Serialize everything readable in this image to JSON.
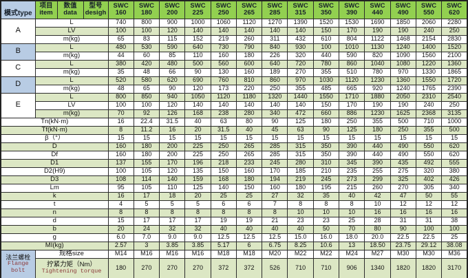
{
  "colors": {
    "header_green": "#92d050",
    "stripe_green": "#dce7c4",
    "cell_blue": "#b8cce4",
    "grid_border": "#2b2b2b",
    "flange_text_red": "#8b3a3a"
  },
  "columns": {
    "brand": "SWC",
    "sizes": [
      "160",
      "180",
      "200",
      "225",
      "250",
      "265",
      "285",
      "315",
      "350",
      "390",
      "440",
      "490",
      "550",
      "620"
    ]
  },
  "header": {
    "mode": "模式type",
    "item_cn": "项目",
    "item_en": "item",
    "data_cn": "数值",
    "data_en": "data",
    "design_cn": "型号",
    "design_en": "desigh"
  },
  "mode_groups": [
    {
      "mode": "A",
      "blue": false,
      "rows": [
        {
          "label": "L",
          "values": [
            "740",
            "800",
            "900",
            "1000",
            "1060",
            "1120",
            "1270",
            "1390",
            "1520",
            "1530",
            "1690",
            "1850",
            "2060",
            "2280"
          ]
        },
        {
          "label": "LV",
          "values": [
            "100",
            "100",
            "120",
            "140",
            "140",
            "140",
            "140",
            "140",
            "150",
            "170",
            "190",
            "190",
            "240",
            "250"
          ]
        },
        {
          "label": "m(kg)",
          "values": [
            "65",
            "83",
            "115",
            "152",
            "219",
            "260",
            "311",
            "432",
            "610",
            "804",
            "1122",
            "1468",
            "2154",
            "2830"
          ]
        }
      ]
    },
    {
      "mode": "B",
      "blue": true,
      "rows": [
        {
          "label": "L",
          "values": [
            "480",
            "530",
            "590",
            "640",
            "730",
            "790",
            "840",
            "930",
            "100",
            "1010",
            "1130",
            "1240",
            "1400",
            "1520"
          ]
        },
        {
          "label": "m(kg)",
          "values": [
            "44",
            "60",
            "85",
            "110",
            "160",
            "180",
            "226",
            "320",
            "440",
            "590",
            "820",
            "1090",
            "1560",
            "2100"
          ]
        }
      ]
    },
    {
      "mode": "C",
      "blue": false,
      "rows": [
        {
          "label": "L",
          "values": [
            "380",
            "420",
            "480",
            "500",
            "560",
            "600",
            "640",
            "720",
            "780",
            "860",
            "1040",
            "1080",
            "1220",
            "1360"
          ]
        },
        {
          "label": "m(kg)",
          "values": [
            "35",
            "48",
            "66",
            "90",
            "130",
            "160",
            "189",
            "270",
            "355",
            "510",
            "780",
            "970",
            "1330",
            "1865"
          ]
        }
      ]
    },
    {
      "mode": "D",
      "blue": true,
      "rows": [
        {
          "label": "L",
          "values": [
            "520",
            "580",
            "620",
            "690",
            "760",
            "810",
            "860",
            "970",
            "1030",
            "1120",
            "1230",
            "1360",
            "1550",
            "1720"
          ]
        },
        {
          "label": "m(kg)",
          "values": [
            "48",
            "65",
            "90",
            "120",
            "173",
            "220",
            "250",
            "355",
            "485",
            "665",
            "920",
            "1240",
            "1765",
            "2390"
          ]
        }
      ]
    },
    {
      "mode": "E",
      "blue": false,
      "rows": [
        {
          "label": "L",
          "values": [
            "800",
            "850",
            "940",
            "1050",
            "1120",
            "1180",
            "1320",
            "1440",
            "1550",
            "1710",
            "1880",
            "2050",
            "2310",
            "2540"
          ]
        },
        {
          "label": "LV",
          "values": [
            "100",
            "100",
            "120",
            "140",
            "140",
            "140",
            "140",
            "140",
            "150",
            "170",
            "190",
            "190",
            "240",
            "250"
          ]
        },
        {
          "label": "m(kg)",
          "values": [
            "70",
            "92",
            "126",
            "168",
            "238",
            "280",
            "340",
            "472",
            "660",
            "886",
            "1230",
            "1625",
            "2368",
            "3135"
          ]
        }
      ]
    }
  ],
  "spec_rows": [
    {
      "label": "Tn(kN·m)",
      "values": [
        "16",
        "22.4",
        "31.5",
        "40",
        "63",
        "80",
        "90",
        "125",
        "180",
        "250",
        "355",
        "500",
        "710",
        "1000"
      ]
    },
    {
      "label": "Tf(kN·m)",
      "values": [
        "8",
        "11.2",
        "16",
        "20",
        "31.5",
        "40",
        "45",
        "63",
        "90",
        "125",
        "180",
        "250",
        "355",
        "500"
      ]
    },
    {
      "label": "β（°）",
      "values": [
        "15",
        "15",
        "15",
        "15",
        "15",
        "15",
        "15",
        "15",
        "15",
        "15",
        "15",
        "15",
        "15",
        "15"
      ]
    },
    {
      "label": "D",
      "values": [
        "160",
        "180",
        "200",
        "225",
        "250",
        "265",
        "285",
        "315",
        "350",
        "390",
        "440",
        "490",
        "550",
        "620"
      ]
    },
    {
      "label": "Df",
      "values": [
        "160",
        "180",
        "200",
        "225",
        "250",
        "265",
        "285",
        "315",
        "350",
        "390",
        "440",
        "490",
        "550",
        "620"
      ]
    },
    {
      "label": "D1",
      "values": [
        "137",
        "155",
        "170",
        "196",
        "218",
        "233",
        "245",
        "280",
        "310",
        "345",
        "390",
        "435",
        "492",
        "555"
      ]
    },
    {
      "label": "D2(H9)",
      "values": [
        "100",
        "105",
        "120",
        "135",
        "150",
        "160",
        "170",
        "185",
        "210",
        "235",
        "255",
        "275",
        "320",
        "380"
      ]
    },
    {
      "label": "D3",
      "values": [
        "108",
        "114",
        "140",
        "159",
        "168",
        "180",
        "194",
        "219",
        "245",
        "273",
        "299",
        "325",
        "402",
        "426"
      ]
    },
    {
      "label": "Lm",
      "values": [
        "95",
        "105",
        "110",
        "125",
        "140",
        "150",
        "160",
        "180",
        "195",
        "215",
        "260",
        "270",
        "305",
        "340"
      ]
    },
    {
      "label": "k",
      "values": [
        "16",
        "17",
        "18",
        "20",
        "25",
        "25",
        "27",
        "32",
        "35",
        "40",
        "42",
        "47",
        "50",
        "55"
      ]
    },
    {
      "label": "t",
      "values": [
        "4",
        "5",
        "5",
        "5",
        "6",
        "6",
        "7",
        "8",
        "8",
        "8",
        "10",
        "12",
        "12",
        "12"
      ]
    },
    {
      "label": "n",
      "values": [
        "8",
        "8",
        "8",
        "8",
        "8",
        "8",
        "8",
        "10",
        "10",
        "10",
        "16",
        "16",
        "16",
        "16"
      ]
    },
    {
      "label": "d",
      "values": [
        "15",
        "17",
        "17",
        "17",
        "19",
        "19",
        "21",
        "23",
        "23",
        "25",
        "28",
        "31",
        "31",
        "38"
      ]
    },
    {
      "label": "b",
      "values": [
        "20",
        "24",
        "32",
        "32",
        "40",
        "40",
        "40",
        "40",
        "50",
        "70",
        "80",
        "90",
        "100",
        "100"
      ]
    },
    {
      "label": "g",
      "values": [
        "6.0",
        "7.0",
        "9.0",
        "9.0",
        "12.5",
        "12.5",
        "12.5",
        "15.0",
        "16.0",
        "18.0",
        "20.0",
        "22.5",
        "22.5",
        "25"
      ]
    },
    {
      "label": "MI(kg)",
      "values": [
        "2.57",
        "3",
        "3.85",
        "3.85",
        "5.17",
        "6",
        "6.75",
        "8.25",
        "10.6",
        "13",
        "18.50",
        "23.75",
        "29.12",
        "38.08"
      ]
    }
  ],
  "flange": {
    "label_cn": "法兰螺栓",
    "label_en_line1": "Flange",
    "label_en_line2": "bolt",
    "size_row": {
      "label": "规格size",
      "values": [
        "M14",
        "M16",
        "M16",
        "M16",
        "M18",
        "M18",
        "M20",
        "M22",
        "M22",
        "M24",
        "M27",
        "M30",
        "M30",
        "M36"
      ]
    },
    "torque_row": {
      "label_cn": "拧紧力矩（Nm）",
      "label_en": "Tightening torque",
      "values": [
        "180",
        "270",
        "270",
        "270",
        "372",
        "372",
        "526",
        "710",
        "710",
        "906",
        "1340",
        "1820",
        "1820",
        "3170"
      ]
    }
  }
}
